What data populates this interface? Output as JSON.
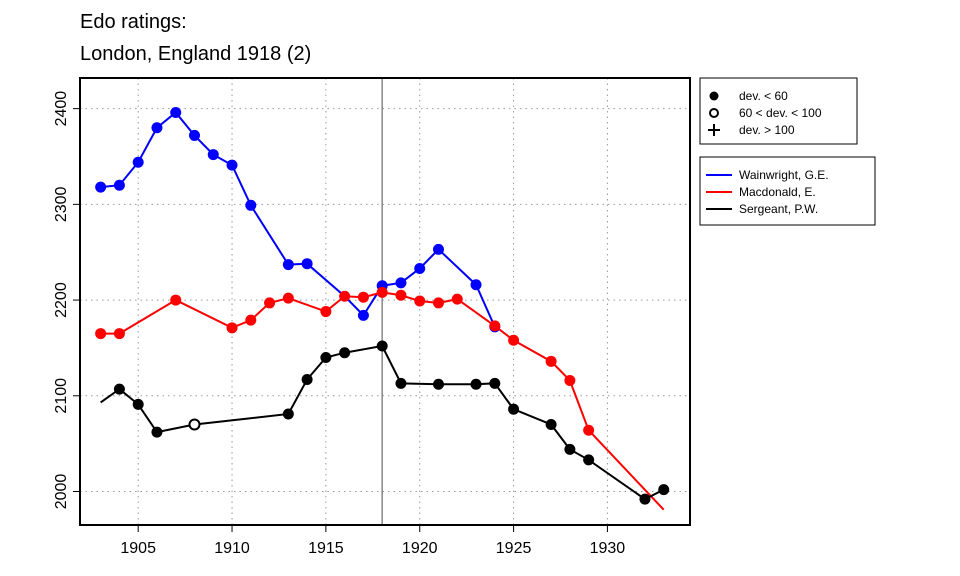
{
  "chart_data": {
    "type": "line",
    "title": [
      "Edo ratings:",
      "London, England 1918 (2)"
    ],
    "xlabel": "",
    "ylabel": "",
    "xlim": [
      1901.9,
      1934.4
    ],
    "ylim": [
      1965,
      2432
    ],
    "xticks": [
      1905,
      1910,
      1915,
      1920,
      1925,
      1930
    ],
    "yticks": [
      2000,
      2100,
      2200,
      2300,
      2400
    ],
    "grid": true,
    "vline": 1918,
    "marker_legend": [
      {
        "marker": "filled",
        "label": "dev. < 60"
      },
      {
        "marker": "open",
        "label": "60 < dev. < 100"
      },
      {
        "marker": "plus",
        "label": "dev. > 100"
      }
    ],
    "legend_placement": "right",
    "series": [
      {
        "name": "Wainwright, G.E.",
        "color": "#0000ff",
        "x": [
          1903,
          1904,
          1905,
          1906,
          1907,
          1908,
          1909,
          1910,
          1911,
          1913,
          1914,
          1916,
          1917,
          1918,
          1919,
          1920,
          1921,
          1923,
          1924
        ],
        "y": [
          2318,
          2320,
          2344,
          2380,
          2396,
          2372,
          2352,
          2341,
          2299,
          2237,
          2238,
          2204,
          2184,
          2215,
          2218,
          2233,
          2253,
          2216,
          2172
        ],
        "markers": [
          "filled",
          "filled",
          "filled",
          "filled",
          "filled",
          "filled",
          "filled",
          "filled",
          "filled",
          "filled",
          "filled",
          "none",
          "filled",
          "filled",
          "filled",
          "filled",
          "filled",
          "filled",
          "filled"
        ]
      },
      {
        "name": "Macdonald, E.",
        "color": "#ff0000",
        "x": [
          1903,
          1904,
          1907,
          1910,
          1911,
          1912,
          1913,
          1915,
          1916,
          1917,
          1918,
          1919,
          1920,
          1921,
          1922,
          1924,
          1925,
          1927,
          1928,
          1929,
          1933
        ],
        "y": [
          2165,
          2165,
          2200,
          2171,
          2179,
          2197,
          2202,
          2188,
          2204,
          2203,
          2208,
          2205,
          2199,
          2197,
          2201,
          2173,
          2158,
          2136,
          2116,
          2064,
          1981
        ],
        "markers": [
          "filled",
          "filled",
          "filled",
          "filled",
          "filled",
          "filled",
          "filled",
          "filled",
          "filled",
          "filled",
          "filled",
          "filled",
          "filled",
          "filled",
          "filled",
          "filled",
          "filled",
          "filled",
          "filled",
          "filled",
          "none"
        ]
      },
      {
        "name": "Sergeant, P.W.",
        "color": "#000000",
        "x": [
          1903,
          1904,
          1905,
          1906,
          1908,
          1913,
          1914,
          1915,
          1916,
          1918,
          1919,
          1921,
          1923,
          1924,
          1925,
          1927,
          1928,
          1929,
          1932,
          1933
        ],
        "y": [
          2093,
          2107,
          2091,
          2062,
          2070,
          2081,
          2117,
          2140,
          2145,
          2152,
          2113,
          2112,
          2112,
          2113,
          2086,
          2070,
          2044,
          2033,
          1992,
          2002
        ],
        "markers": [
          "none",
          "filled",
          "filled",
          "filled",
          "open",
          "filled",
          "filled",
          "filled",
          "filled",
          "filled",
          "filled",
          "filled",
          "filled",
          "filled",
          "filled",
          "filled",
          "filled",
          "filled",
          "filled",
          "filled"
        ]
      }
    ]
  }
}
